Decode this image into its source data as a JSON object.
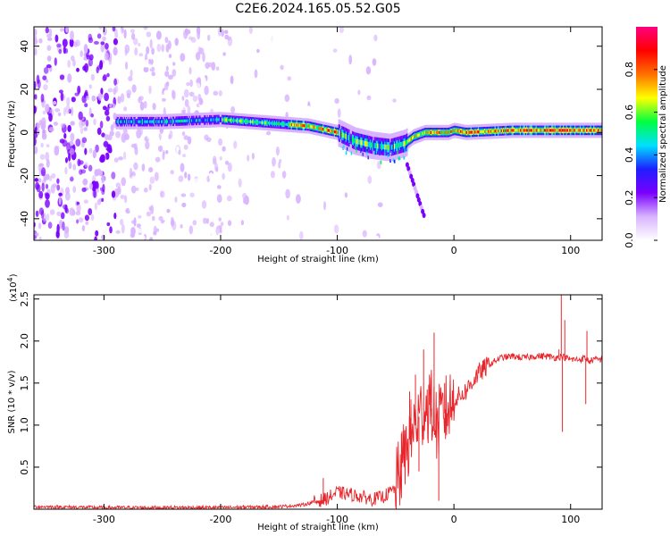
{
  "title": "C2E6.2024.165.05.52.G05",
  "chart_data": [
    {
      "type": "heatmap",
      "title": "C2E6.2024.165.05.52.G05",
      "xlabel": "Height of straight line (km)",
      "ylabel": "Frequency (Hz)",
      "xlim": [
        -360,
        127
      ],
      "ylim": [
        -50,
        49
      ],
      "xticks": [
        "-300",
        "-200",
        "-100",
        "0",
        "100"
      ],
      "xtick_values": [
        -300,
        -200,
        -100,
        0,
        100
      ],
      "yticks": [
        "-40",
        "-20",
        "0",
        "20",
        "40"
      ],
      "ytick_values": [
        -40,
        -20,
        0,
        20,
        40
      ],
      "colorbar": {
        "label": "Normalized spectral amplitude",
        "range": [
          0,
          1
        ],
        "ticks": [
          "0.0",
          "0.2",
          "0.4",
          "0.6",
          "0.8"
        ],
        "tick_values": [
          0.0,
          0.2,
          0.4,
          0.6,
          0.8
        ],
        "colors": [
          "#ffffff",
          "#d8b4ff",
          "#7a00ff",
          "#1e1eff",
          "#00e0ff",
          "#00ff40",
          "#ffff00",
          "#ff7000",
          "#ff0000",
          "#ff0080"
        ]
      },
      "ridge": {
        "x": [
          -285,
          -250,
          -200,
          -150,
          -125,
          -100,
          -85,
          -70,
          -55,
          -42,
          -35,
          -25,
          -15,
          -5,
          0,
          10,
          50,
          100,
          127
        ],
        "y": [
          5,
          5,
          6,
          4,
          3,
          0,
          -4,
          -6,
          -7,
          -5,
          -2,
          0,
          0,
          0,
          1,
          0,
          1,
          1,
          1
        ]
      }
    },
    {
      "type": "line",
      "xlabel": "Height of straight line (km)",
      "ylabel": "SNR (10 * v/v)",
      "yscale_label": "(x10",
      "yscale_exp": "4",
      "yscale_close": ")",
      "xlim": [
        -360,
        127
      ],
      "ylim": [
        0,
        2.55
      ],
      "xticks": [
        "-300",
        "-200",
        "-100",
        "0",
        "100"
      ],
      "xtick_values": [
        -300,
        -200,
        -100,
        0,
        100
      ],
      "yticks": [
        "0.5",
        "1.0",
        "1.5",
        "2.0",
        "2.5"
      ],
      "ytick_values": [
        0.5,
        1.0,
        1.5,
        2.0,
        2.5
      ],
      "series": [
        {
          "color": "#e8262b",
          "x": [
            -360,
            -300,
            -250,
            -200,
            -150,
            -130,
            -110,
            -100,
            -90,
            -80,
            -70,
            -60,
            -50,
            -45,
            -40,
            -35,
            -30,
            -25,
            -20,
            -15,
            -10,
            -5,
            0,
            10,
            20,
            30,
            40,
            50,
            60,
            70,
            80,
            88,
            92,
            96,
            100,
            108,
            112,
            116,
            120,
            127
          ],
          "y": [
            0.03,
            0.02,
            0.02,
            0.02,
            0.03,
            0.05,
            0.12,
            0.2,
            0.18,
            0.15,
            0.12,
            0.15,
            0.25,
            0.5,
            0.75,
            0.95,
            1.1,
            1.2,
            1.25,
            1.0,
            1.1,
            1.2,
            1.3,
            1.4,
            1.6,
            1.72,
            1.8,
            1.82,
            1.8,
            1.82,
            1.82,
            1.8,
            1.82,
            1.8,
            1.78,
            1.78,
            1.8,
            1.76,
            1.78,
            1.78
          ]
        }
      ],
      "spikes": [
        {
          "x": -112,
          "y": 0.37
        },
        {
          "x": -45,
          "y": 0.9
        },
        {
          "x": -38,
          "y": 1.4
        },
        {
          "x": -33,
          "y": 1.6
        },
        {
          "x": -30,
          "y": 0.45
        },
        {
          "x": -26,
          "y": 1.9
        },
        {
          "x": -21,
          "y": 1.6
        },
        {
          "x": -19,
          "y": 1.1
        },
        {
          "x": -17,
          "y": 2.1
        },
        {
          "x": -13,
          "y": 0.1
        },
        {
          "x": -8,
          "y": 1.5
        },
        {
          "x": 90,
          "y": 1.9
        },
        {
          "x": 92,
          "y": 2.55
        },
        {
          "x": 93,
          "y": 0.92
        },
        {
          "x": 95,
          "y": 2.25
        },
        {
          "x": 113,
          "y": 1.25
        },
        {
          "x": 114,
          "y": 2.12
        }
      ]
    }
  ]
}
